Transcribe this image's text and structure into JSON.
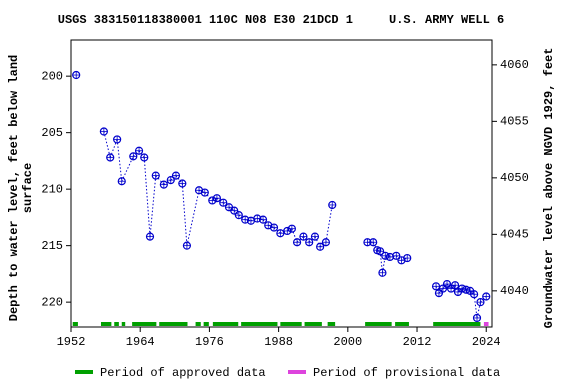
{
  "chart_data": {
    "type": "scatter",
    "title": "USGS 383150118380001 110C N08 E30 21DCD 1     U.S. ARMY WELL 6",
    "y_label": [
      "Depth to water level, feet below land",
      "surface"
    ],
    "y2_label": "Groundwater level above NGVD 1929, feet",
    "x": [
      1952.9,
      1957.7,
      1958.8,
      1960.0,
      1960.8,
      1962.8,
      1963.8,
      1964.7,
      1965.7,
      1966.7,
      1968.1,
      1969.3,
      1970.2,
      1971.3,
      1972.1,
      1974.2,
      1975.2,
      1976.5,
      1977.3,
      1978.4,
      1979.4,
      1980.3,
      1981.1,
      1982.2,
      1983.2,
      1984.3,
      1985.3,
      1986.2,
      1987.2,
      1988.3,
      1989.5,
      1990.3,
      1991.2,
      1992.3,
      1993.3,
      1994.3,
      1995.2,
      1996.2,
      1997.3,
      2003.4,
      2004.4,
      2005.1,
      2005.6,
      2006.0,
      2006.5,
      2007.3,
      2008.4,
      2009.3,
      2010.3,
      2015.3,
      2015.8,
      2016.5,
      2017.2,
      2017.9,
      2018.6,
      2019.1,
      2019.8,
      2020.5,
      2021.2,
      2021.9,
      2022.4,
      2023.0,
      2024.0
    ],
    "series": [
      {
        "color": "#0000cc",
        "values": [
          199.9,
          204.9,
          207.2,
          205.6,
          209.3,
          207.1,
          206.6,
          207.2,
          214.2,
          208.8,
          209.6,
          209.2,
          208.8,
          209.5,
          215.0,
          210.1,
          210.3,
          211.0,
          210.8,
          211.2,
          211.6,
          211.9,
          212.3,
          212.7,
          212.8,
          212.6,
          212.7,
          213.2,
          213.4,
          213.9,
          213.7,
          213.5,
          214.7,
          214.2,
          214.7,
          214.2,
          215.1,
          214.7,
          211.4,
          214.7,
          214.7,
          215.4,
          215.5,
          217.4,
          215.9,
          216.0,
          215.9,
          216.3,
          216.1,
          218.6,
          219.2,
          218.8,
          218.4,
          218.8,
          218.5,
          219.1,
          218.8,
          218.9,
          219.0,
          219.3,
          221.4,
          220.0,
          219.5
        ]
      }
    ],
    "xlim": [
      1952,
      2025
    ],
    "xticks": [
      1952,
      1964,
      1976,
      1988,
      2000,
      2012,
      2024
    ],
    "ylim": [
      222.2,
      196.8
    ],
    "yticks": [
      200,
      205,
      210,
      215,
      220
    ],
    "y2lim": [
      4036.8,
      4062.2
    ],
    "y2ticks": [
      4040,
      4045,
      4050,
      4055,
      4060
    ],
    "periods": [
      {
        "name": "Period of approved data",
        "color": "#00a000",
        "ranges": [
          [
            1952.3,
            1953.2
          ],
          [
            1957.2,
            1959.0
          ],
          [
            1959.5,
            1960.3
          ],
          [
            1960.8,
            1961.4
          ],
          [
            1962.6,
            1966.8
          ],
          [
            1967.3,
            1972.2
          ],
          [
            1973.6,
            1974.5
          ],
          [
            1975.0,
            1975.9
          ],
          [
            1976.6,
            1981.0
          ],
          [
            1981.5,
            1987.8
          ],
          [
            1988.3,
            1992.0
          ],
          [
            1992.5,
            1995.5
          ],
          [
            1996.5,
            1997.8
          ],
          [
            2003.0,
            2007.6
          ],
          [
            2008.2,
            2010.6
          ],
          [
            2014.8,
            2023.0
          ]
        ]
      },
      {
        "name": "Period of provisional data",
        "color": "#dd44dd",
        "ranges": [
          [
            2023.6,
            2024.4
          ]
        ]
      }
    ]
  }
}
